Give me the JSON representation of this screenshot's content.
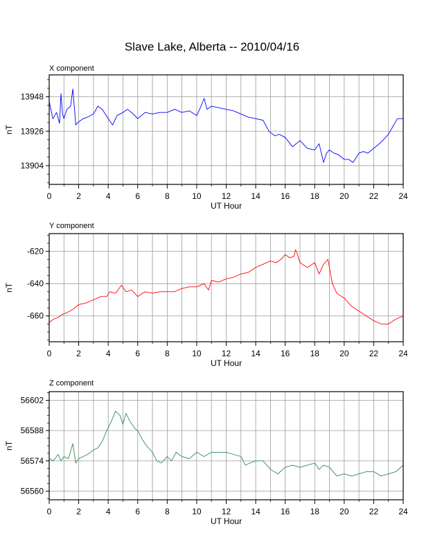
{
  "title": "Slave Lake, Alberta -- 2010/04/16",
  "chart_data": [
    {
      "type": "line",
      "panel_title": "X component",
      "xlabel": "UT Hour",
      "ylabel": "nT",
      "xlim": [
        0,
        24
      ],
      "ylim": [
        13892,
        13962
      ],
      "xticks": [
        "0",
        "2",
        "4",
        "6",
        "8",
        "10",
        "12",
        "14",
        "16",
        "18",
        "20",
        "22",
        "24"
      ],
      "yticks": [
        "13904",
        "13926",
        "13948"
      ],
      "grid": true,
      "color": "#0000ff",
      "series": [
        {
          "x": [
            0,
            0.25,
            0.5,
            0.7,
            0.8,
            0.9,
            1.0,
            1.2,
            1.45,
            1.6,
            1.7,
            1.8,
            2.0,
            2.3,
            2.6,
            3.0,
            3.3,
            3.6,
            4.0,
            4.3,
            4.6,
            5.0,
            5.3,
            5.7,
            6.0,
            6.5,
            7.0,
            7.5,
            8.0,
            8.5,
            9.0,
            9.5,
            10.0,
            10.3,
            10.5,
            10.7,
            11.0,
            11.5,
            12.0,
            12.5,
            13.0,
            13.5,
            14.0,
            14.5,
            14.9,
            15.3,
            15.6,
            16.0,
            16.5,
            17.0,
            17.5,
            18.0,
            18.3,
            18.6,
            18.8,
            19.0,
            19.3,
            19.6,
            20.0,
            20.3,
            20.6,
            21.0,
            21.3,
            21.6,
            22.0,
            22.5,
            23.0,
            23.3,
            23.6,
            24.0
          ],
          "y": [
            13945,
            13934,
            13938,
            13931,
            13950,
            13937,
            13934,
            13940,
            13942,
            13953,
            13942,
            13930,
            13932,
            13934,
            13935,
            13937,
            13942,
            13940,
            13934,
            13930,
            13936,
            13938,
            13940,
            13937,
            13934,
            13938,
            13937,
            13938,
            13938,
            13940,
            13938,
            13939,
            13936,
            13942,
            13947,
            13940,
            13942,
            13941,
            13940,
            13939,
            13937,
            13935,
            13934,
            13933,
            13926,
            13923,
            13924,
            13922,
            13916,
            13920,
            13915,
            13914,
            13918,
            13906,
            13912,
            13914,
            13912,
            13911,
            13908,
            13908,
            13906,
            13912,
            13913,
            13912,
            13915,
            13919,
            13924,
            13929,
            13934,
            13934
          ]
        }
      ]
    },
    {
      "type": "line",
      "panel_title": "Y component",
      "xlabel": "UT Hour",
      "ylabel": "nT",
      "xlim": [
        0,
        24
      ],
      "ylim": [
        -676,
        -609
      ],
      "xticks": [
        "0",
        "2",
        "4",
        "6",
        "8",
        "10",
        "12",
        "14",
        "16",
        "18",
        "20",
        "22",
        "24"
      ],
      "yticks": [
        "-620",
        "-640",
        "-660"
      ],
      "grid": true,
      "color": "#ff0000",
      "series": [
        {
          "x": [
            0,
            0.3,
            0.6,
            0.9,
            1.2,
            1.6,
            2.0,
            2.5,
            3.0,
            3.5,
            3.9,
            4.1,
            4.5,
            4.9,
            5.2,
            5.6,
            6.0,
            6.5,
            7.0,
            7.5,
            8.0,
            8.5,
            9.0,
            9.5,
            10.0,
            10.5,
            10.8,
            11.0,
            11.5,
            12.0,
            12.5,
            13.0,
            13.5,
            14.0,
            14.5,
            15.0,
            15.4,
            15.7,
            16.0,
            16.3,
            16.6,
            16.7,
            16.8,
            17.0,
            17.5,
            18.0,
            18.3,
            18.6,
            18.9,
            19.0,
            19.2,
            19.5,
            20.0,
            20.5,
            21.0,
            21.5,
            22.0,
            22.5,
            23.0,
            23.5,
            24.0
          ],
          "y": [
            -664,
            -662,
            -661,
            -659,
            -658,
            -656,
            -653,
            -652,
            -650,
            -648,
            -648,
            -645,
            -646,
            -641,
            -645,
            -644,
            -648,
            -645,
            -646,
            -645,
            -645,
            -645,
            -643,
            -642,
            -642,
            -640,
            -644,
            -638,
            -639,
            -637,
            -636,
            -634,
            -633,
            -630,
            -628,
            -626,
            -627,
            -625,
            -622,
            -624,
            -623,
            -619,
            -621,
            -627,
            -630,
            -627,
            -634,
            -628,
            -625,
            -630,
            -640,
            -646,
            -649,
            -654,
            -657,
            -660,
            -663,
            -665,
            -665,
            -662,
            -660
          ]
        }
      ]
    },
    {
      "type": "line",
      "panel_title": "Z component",
      "xlabel": "UT Hour",
      "ylabel": "nT",
      "xlim": [
        0,
        24
      ],
      "ylim": [
        56556,
        56606
      ],
      "xticks": [
        "0",
        "2",
        "4",
        "6",
        "8",
        "10",
        "12",
        "14",
        "16",
        "18",
        "20",
        "22",
        "24"
      ],
      "yticks": [
        "56560",
        "56574",
        "56588",
        "56602"
      ],
      "grid": true,
      "color": "#2e8b57",
      "series": [
        {
          "x": [
            0,
            0.3,
            0.6,
            0.8,
            1.0,
            1.3,
            1.6,
            1.8,
            2.0,
            2.3,
            2.6,
            3.0,
            3.3,
            3.6,
            3.9,
            4.2,
            4.5,
            4.8,
            5.0,
            5.2,
            5.5,
            5.8,
            6.0,
            6.3,
            6.6,
            7.0,
            7.3,
            7.6,
            8.0,
            8.3,
            8.6,
            9.0,
            9.5,
            10.0,
            10.5,
            11.0,
            11.5,
            12.0,
            12.5,
            13.0,
            13.3,
            13.6,
            14.0,
            14.5,
            15.0,
            15.5,
            16.0,
            16.5,
            17.0,
            17.5,
            18.0,
            18.3,
            18.6,
            19.0,
            19.5,
            20.0,
            20.5,
            21.0,
            21.5,
            22.0,
            22.5,
            23.0,
            23.5,
            24.0
          ],
          "y": [
            56575,
            56574,
            56577,
            56574,
            56576,
            56575,
            56582,
            56573,
            56575,
            56576,
            56577,
            56579,
            56580,
            56583,
            56588,
            56592,
            56597,
            56595,
            56591,
            56596,
            56592,
            56589,
            56588,
            56584,
            56581,
            56578,
            56574,
            56573,
            56576,
            56574,
            56578,
            56576,
            56575,
            56578,
            56576,
            56578,
            56578,
            56578,
            56577,
            56576,
            56572,
            56573,
            56574,
            56574,
            56570,
            56568,
            56571,
            56572,
            56571,
            56572,
            56573,
            56570,
            56572,
            56571,
            56567,
            56568,
            56567,
            56568,
            56569,
            56569,
            56567,
            56568,
            56569,
            56572
          ]
        }
      ]
    }
  ]
}
